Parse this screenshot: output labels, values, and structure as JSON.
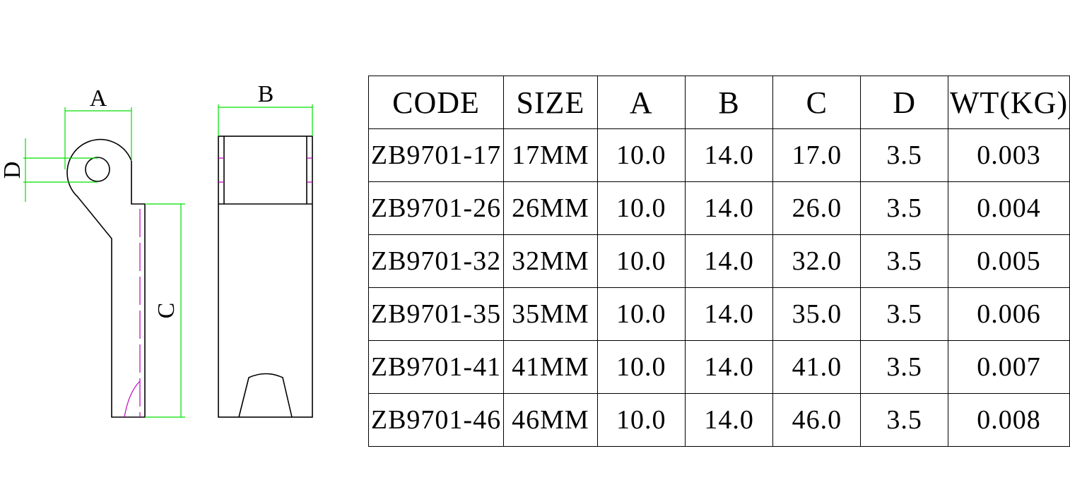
{
  "drawing": {
    "labels": {
      "A": "A",
      "B": "B",
      "C": "C",
      "D": "D"
    }
  },
  "table": {
    "header": [
      "CODE",
      "SIZE",
      "A",
      "B",
      "C",
      "D",
      "WT(KG)"
    ],
    "rows": [
      [
        "ZB9701-17",
        "17MM",
        "10.0",
        "14.0",
        "17.0",
        "3.5",
        "0.003"
      ],
      [
        "ZB9701-26",
        "26MM",
        "10.0",
        "14.0",
        "26.0",
        "3.5",
        "0.004"
      ],
      [
        "ZB9701-32",
        "32MM",
        "10.0",
        "14.0",
        "32.0",
        "3.5",
        "0.005"
      ],
      [
        "ZB9701-35",
        "35MM",
        "10.0",
        "14.0",
        "35.0",
        "3.5",
        "0.006"
      ],
      [
        "ZB9701-41",
        "41MM",
        "10.0",
        "14.0",
        "41.0",
        "3.5",
        "0.007"
      ],
      [
        "ZB9701-46",
        "46MM",
        "10.0",
        "14.0",
        "46.0",
        "3.5",
        "0.008"
      ]
    ]
  }
}
